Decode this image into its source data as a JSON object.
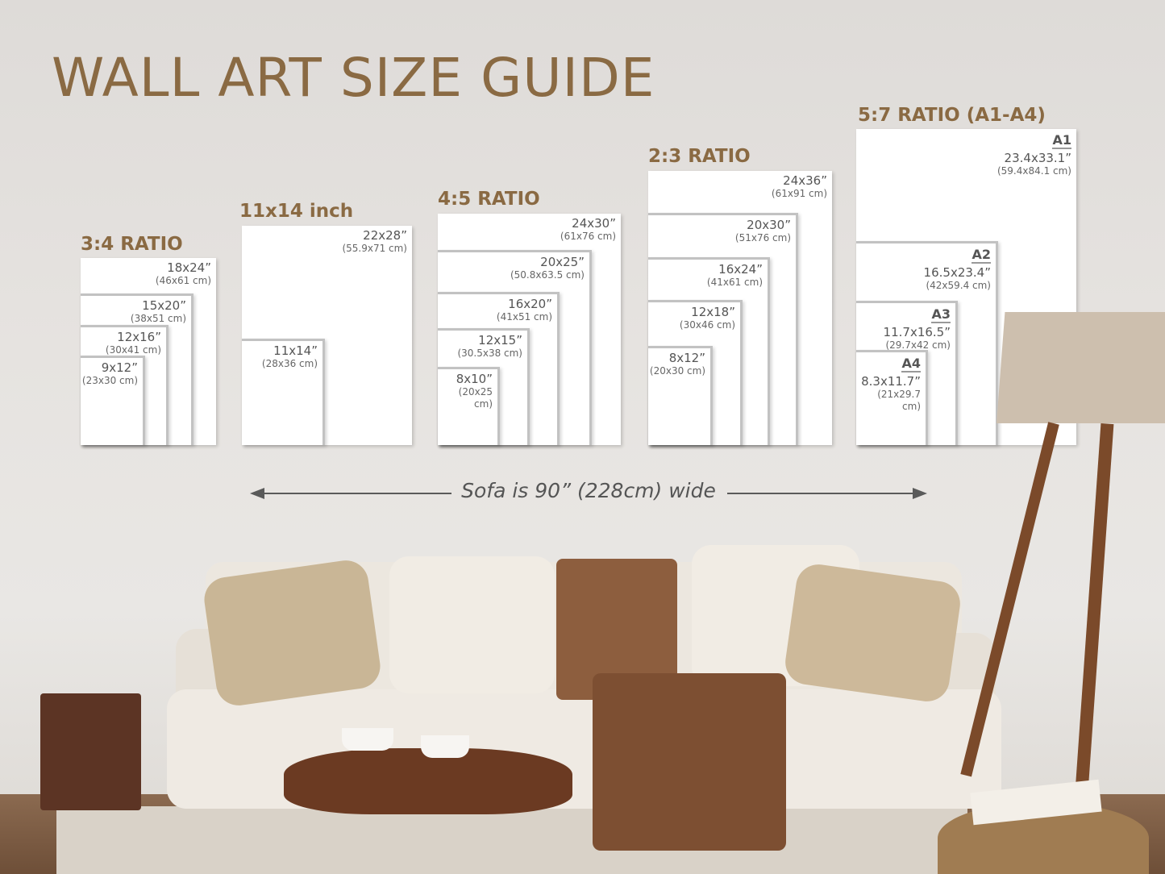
{
  "title": "WALL ART SIZE GUIDE",
  "sofa_note": "Sofa is 90” (228cm) wide",
  "colors": {
    "accent": "#8a6a43",
    "frame": "#ffffff",
    "frame_border": "#c2c2c2"
  },
  "groups": [
    {
      "title": "3:4 RATIO",
      "frames": [
        {
          "inch": "18x24”",
          "cm": "(46x61 cm)"
        },
        {
          "inch": "15x20”",
          "cm": "(38x51 cm)"
        },
        {
          "inch": "12x16”",
          "cm": "(30x41 cm)"
        },
        {
          "inch": "9x12”",
          "cm": "(23x30 cm)"
        }
      ]
    },
    {
      "title": "11x14 inch",
      "frames": [
        {
          "inch": "22x28”",
          "cm": "(55.9x71 cm)"
        },
        {
          "inch": "11x14”",
          "cm": "(28x36 cm)"
        }
      ]
    },
    {
      "title": "4:5 RATIO",
      "frames": [
        {
          "inch": "24x30”",
          "cm": "(61x76 cm)"
        },
        {
          "inch": "20x25”",
          "cm": "(50.8x63.5 cm)"
        },
        {
          "inch": "16x20”",
          "cm": "(41x51 cm)"
        },
        {
          "inch": "12x15”",
          "cm": "(30.5x38 cm)"
        },
        {
          "inch": "8x10”",
          "cm": "(20x25 cm)"
        }
      ]
    },
    {
      "title": "2:3 RATIO",
      "frames": [
        {
          "inch": "24x36”",
          "cm": "(61x91 cm)"
        },
        {
          "inch": "20x30”",
          "cm": "(51x76 cm)"
        },
        {
          "inch": "16x24”",
          "cm": "(41x61 cm)"
        },
        {
          "inch": "12x18”",
          "cm": "(30x46 cm)"
        },
        {
          "inch": "8x12”",
          "cm": "(20x30 cm)"
        }
      ]
    },
    {
      "title": "5:7 RATIO (A1-A4)",
      "frames": [
        {
          "paper": "A1",
          "inch": "23.4x33.1”",
          "cm": "(59.4x84.1 cm)"
        },
        {
          "paper": "A2",
          "inch": "16.5x23.4”",
          "cm": "(42x59.4 cm)"
        },
        {
          "paper": "A3",
          "inch": "11.7x16.5”",
          "cm": "(29.7x42 cm)"
        },
        {
          "paper": "A4",
          "inch": "8.3x11.7”",
          "cm": "(21x29.7 cm)"
        }
      ]
    }
  ]
}
